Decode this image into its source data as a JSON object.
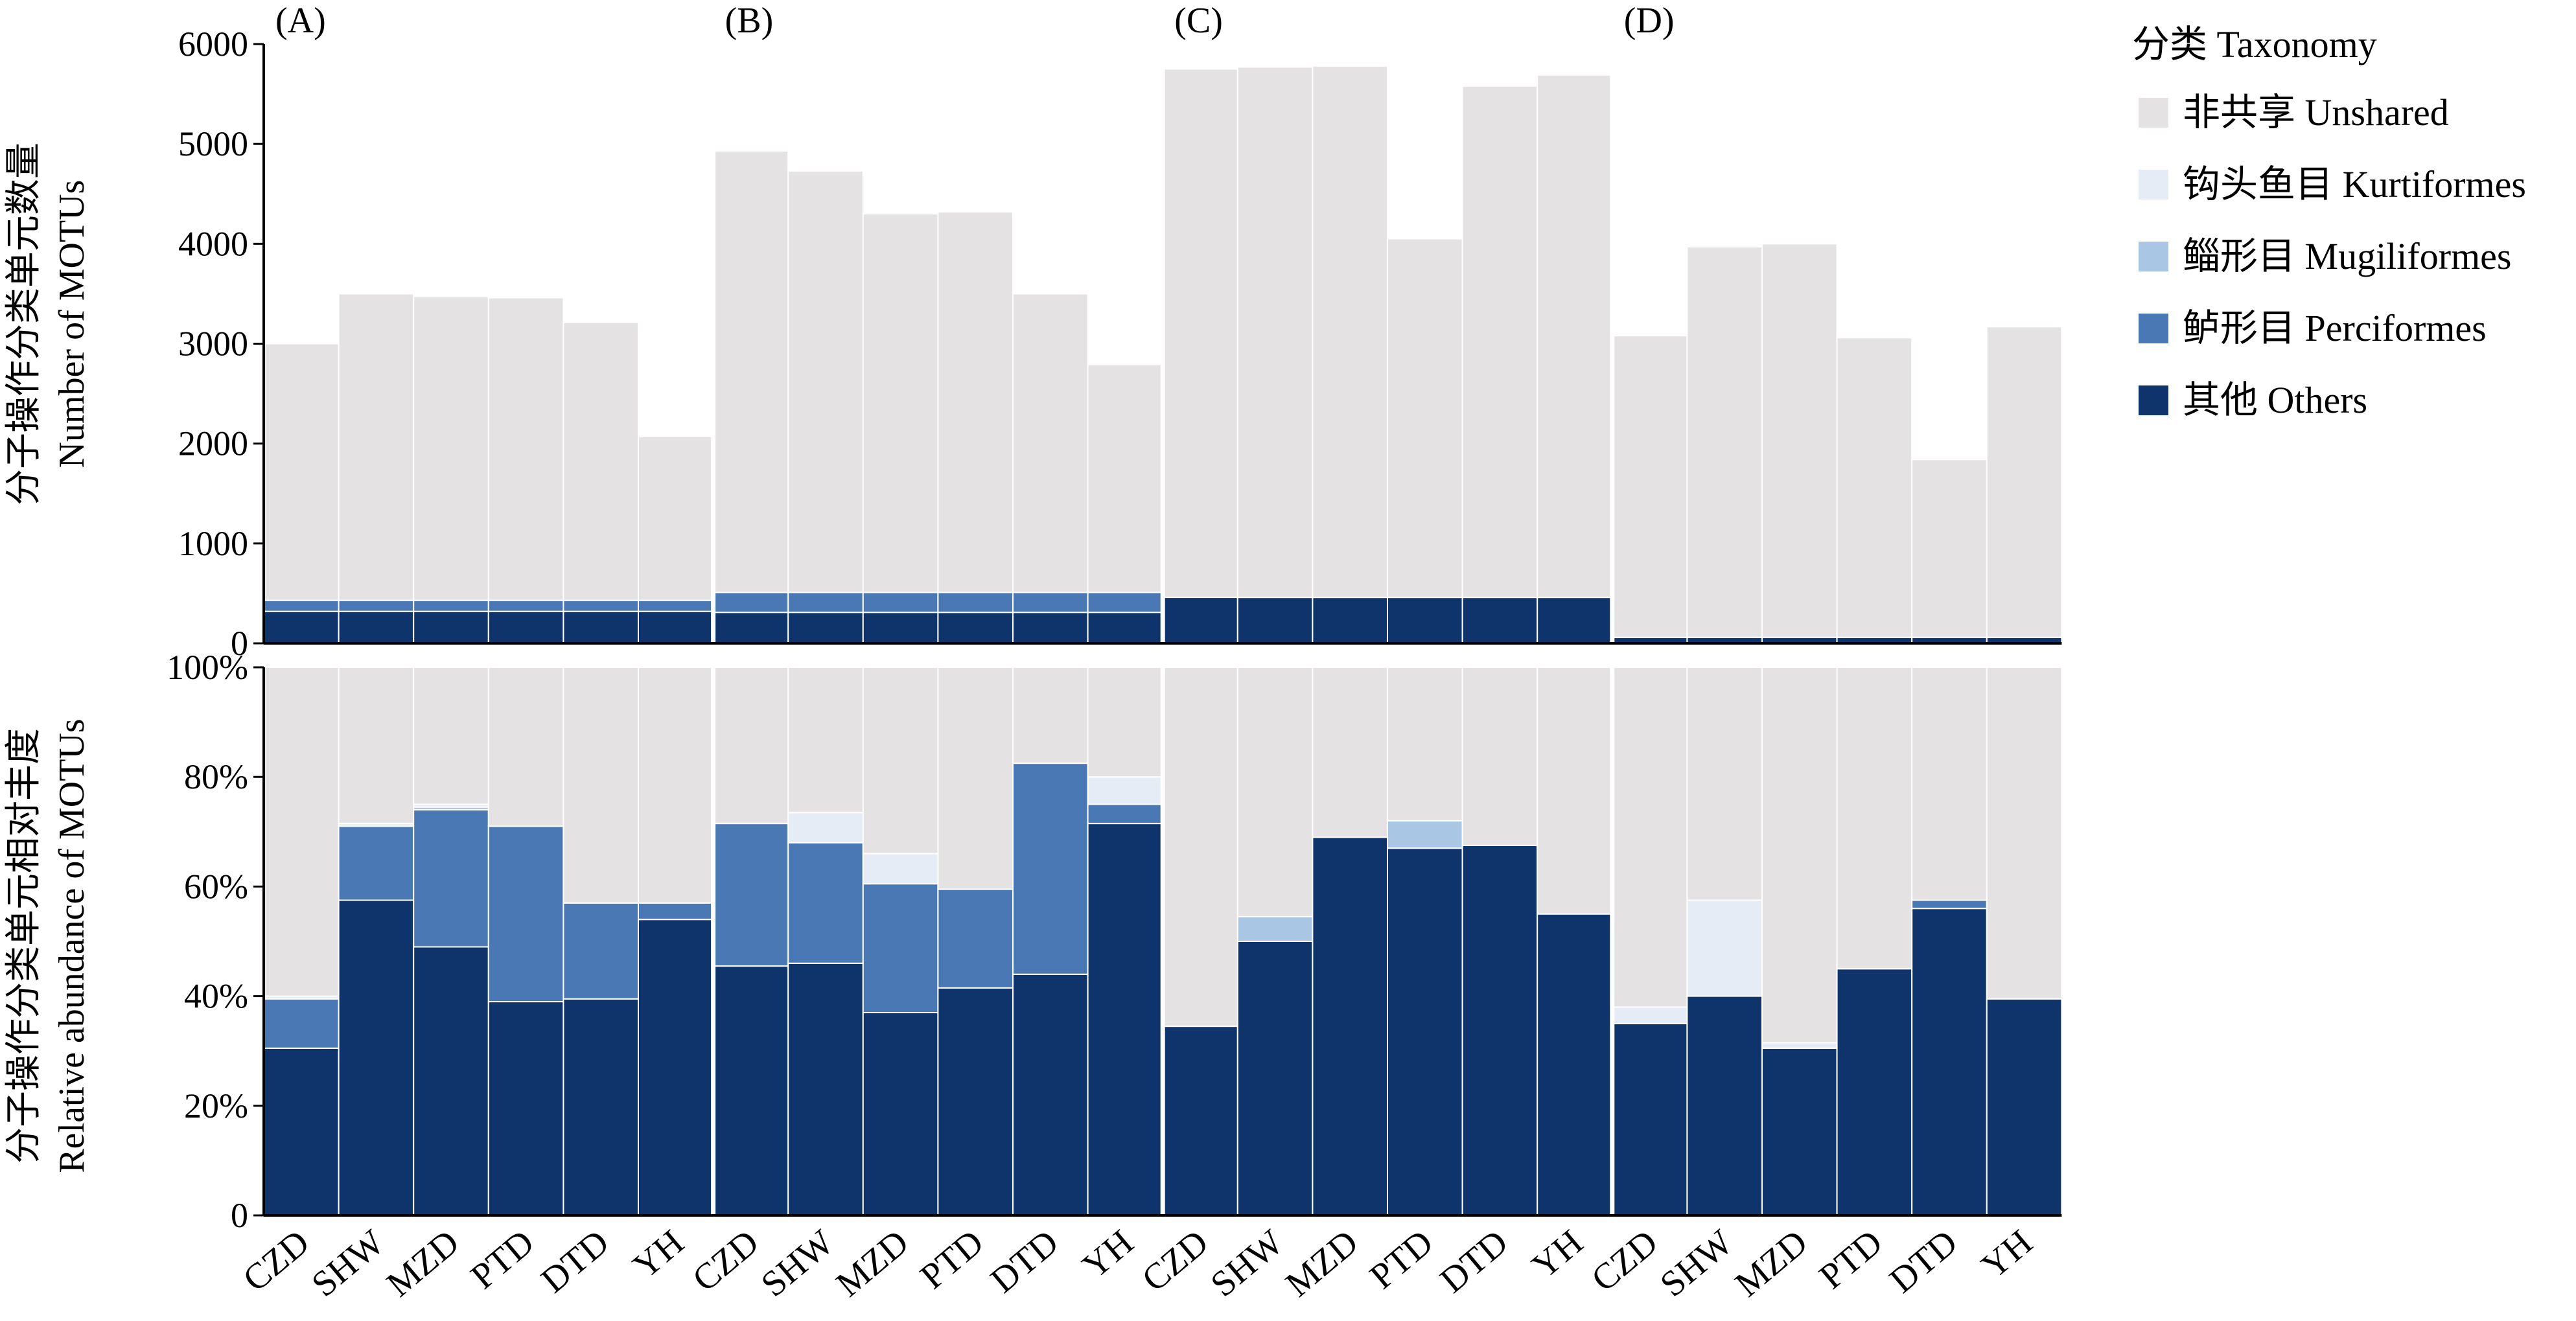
{
  "legend": {
    "title": "分类 Taxonomy",
    "entries": [
      {
        "label": "非共享 Unshared",
        "color": "#e4e2e3"
      },
      {
        "label": "钩头鱼目 Kurtiformes",
        "color": "#e6ecf5"
      },
      {
        "label": "鲻形目 Mugiliformes",
        "color": "#a9c6e5"
      },
      {
        "label": "鲈形目 Perciformes",
        "color": "#4a78b4"
      },
      {
        "label": "其他 Others",
        "color": "#0f346b"
      }
    ]
  },
  "panel_labels": [
    "(A)",
    "(B)",
    "(C)",
    "(D)"
  ],
  "top_axis": {
    "label_line1": "分子操作分类单元数量",
    "label_line2": "Number of MOTUs",
    "ticks": [
      "0",
      "1000",
      "2000",
      "3000",
      "4000",
      "5000",
      "6000"
    ],
    "ylim": [
      0,
      6000
    ]
  },
  "bottom_axis": {
    "label_line1": "分子操作分类单元相对丰度",
    "label_line2": "Relative abundance of MOTUs",
    "ticks": [
      "0",
      "20%",
      "40%",
      "60%",
      "80%",
      "100%"
    ],
    "ylim": [
      0,
      100
    ]
  },
  "chart_data": [
    {
      "type": "bar",
      "stacked": true,
      "categories": [
        "CZD",
        "SHW",
        "MZD",
        "PTD",
        "DTD",
        "YH",
        "CZD",
        "SHW",
        "MZD",
        "PTD",
        "DTD",
        "YH",
        "CZD",
        "SHW",
        "MZD",
        "PTD",
        "DTD",
        "YH",
        "CZD",
        "SHW",
        "MZD",
        "PTD",
        "DTD",
        "YH"
      ],
      "groups": [
        "(A)",
        "(B)",
        "(C)",
        "(D)"
      ],
      "ylabel": "分子操作分类单元数量 Number of MOTUs",
      "ylim": [
        0,
        6000
      ],
      "series": [
        {
          "name": "其他 Others",
          "color": "#0f346b",
          "values": [
            320,
            320,
            320,
            320,
            320,
            320,
            310,
            310,
            310,
            310,
            310,
            310,
            460,
            460,
            460,
            460,
            460,
            460,
            60,
            60,
            60,
            60,
            60,
            60
          ]
        },
        {
          "name": "鲈形目 Perciformes",
          "color": "#4a78b4",
          "values": [
            110,
            110,
            110,
            110,
            110,
            110,
            200,
            200,
            200,
            200,
            200,
            200,
            0,
            0,
            0,
            0,
            0,
            0,
            0,
            0,
            0,
            0,
            0,
            0
          ]
        },
        {
          "name": "鲻形目 Mugiliformes",
          "color": "#a9c6e5",
          "values": [
            0,
            0,
            0,
            0,
            0,
            0,
            0,
            0,
            0,
            0,
            0,
            0,
            0,
            0,
            0,
            0,
            0,
            0,
            0,
            0,
            0,
            0,
            0,
            0
          ]
        },
        {
          "name": "钩头鱼目 Kurtiformes",
          "color": "#e6ecf5",
          "values": [
            0,
            0,
            0,
            0,
            0,
            0,
            0,
            0,
            0,
            0,
            0,
            0,
            0,
            0,
            0,
            0,
            0,
            0,
            0,
            0,
            0,
            0,
            0,
            0
          ]
        },
        {
          "name": "非共享 Unshared",
          "color": "#e4e2e3",
          "values": [
            2570,
            3070,
            3040,
            3030,
            2780,
            1640,
            4420,
            4220,
            3790,
            3810,
            2990,
            2280,
            5290,
            5310,
            5320,
            3590,
            5120,
            5230,
            3020,
            3910,
            3940,
            3000,
            1780,
            3110
          ]
        }
      ]
    },
    {
      "type": "bar",
      "stacked": true,
      "categories": [
        "CZD",
        "SHW",
        "MZD",
        "PTD",
        "DTD",
        "YH",
        "CZD",
        "SHW",
        "MZD",
        "PTD",
        "DTD",
        "YH",
        "CZD",
        "SHW",
        "MZD",
        "PTD",
        "DTD",
        "YH",
        "CZD",
        "SHW",
        "MZD",
        "PTD",
        "DTD",
        "YH"
      ],
      "groups": [
        "(A)",
        "(B)",
        "(C)",
        "(D)"
      ],
      "ylabel": "分子操作分类单元相对丰度 Relative abundance of MOTUs",
      "ylim": [
        0,
        100
      ],
      "series": [
        {
          "name": "其他 Others",
          "color": "#0f346b",
          "values": [
            30.5,
            57.5,
            49,
            39,
            39.5,
            54,
            45.5,
            46,
            37,
            41.5,
            44,
            71.5,
            34.5,
            50,
            69,
            67,
            67.5,
            55,
            35,
            40,
            30.5,
            45,
            56,
            39.5
          ]
        },
        {
          "name": "鲈形目 Perciformes",
          "color": "#4a78b4",
          "values": [
            9,
            13.5,
            25,
            32,
            17.5,
            3,
            26,
            22,
            23.5,
            18,
            38.5,
            3.5,
            0,
            0,
            0,
            0,
            0,
            0,
            0,
            0,
            0,
            0,
            1.5,
            0
          ]
        },
        {
          "name": "鲻形目 Mugiliformes",
          "color": "#a9c6e5",
          "values": [
            0,
            0,
            0.5,
            0,
            0,
            0,
            0,
            0,
            0,
            0,
            0,
            0,
            0,
            4.5,
            0,
            5,
            0,
            0,
            0,
            0,
            0,
            0,
            0,
            0
          ]
        },
        {
          "name": "钩头鱼目 Kurtiformes",
          "color": "#e6ecf5",
          "values": [
            0.5,
            0.5,
            0.5,
            0,
            0,
            0,
            0,
            5.5,
            5.5,
            0,
            0,
            5,
            0,
            0,
            0,
            0,
            0,
            0,
            3,
            17.5,
            1,
            0,
            0,
            0
          ]
        },
        {
          "name": "非共享 Unshared",
          "color": "#e4e2e3",
          "values": [
            60,
            28.5,
            25,
            29,
            43,
            43,
            28.5,
            26.5,
            34,
            40.5,
            17.5,
            20,
            65.5,
            45.5,
            31,
            28,
            32.5,
            45,
            62,
            42.5,
            68.5,
            55,
            42.5,
            60.5
          ]
        }
      ]
    }
  ]
}
